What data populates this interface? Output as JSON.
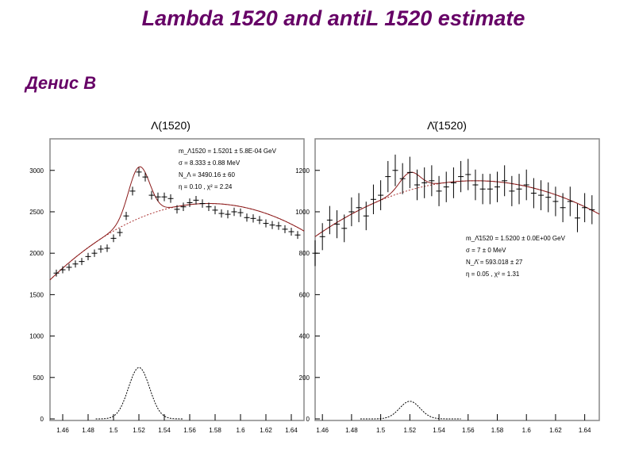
{
  "slide": {
    "title": "Lambda 1520 and antiL 1520 estimate",
    "author": "Денис В",
    "title_color": "#660066"
  },
  "chart_data": [
    {
      "type": "scatter",
      "title": "Λ(1520)",
      "xlim": [
        1.45,
        1.65
      ],
      "ylim": [
        0,
        3400
      ],
      "xticks": [
        "1.46",
        "1.48",
        "1.5",
        "1.52",
        "1.54",
        "1.56",
        "1.58",
        "1.6",
        "1.62",
        "1.64"
      ],
      "yticks": [
        "0",
        "500",
        "1000",
        "1500",
        "2000",
        "2500",
        "3000"
      ],
      "x": [
        1.455,
        1.46,
        1.465,
        1.47,
        1.475,
        1.48,
        1.485,
        1.49,
        1.495,
        1.5,
        1.505,
        1.51,
        1.515,
        1.52,
        1.525,
        1.53,
        1.535,
        1.54,
        1.545,
        1.55,
        1.555,
        1.56,
        1.565,
        1.57,
        1.575,
        1.58,
        1.585,
        1.59,
        1.595,
        1.6,
        1.605,
        1.61,
        1.615,
        1.62,
        1.625,
        1.63,
        1.635,
        1.64,
        1.645
      ],
      "y": [
        1760,
        1800,
        1830,
        1870,
        1900,
        1960,
        2000,
        2050,
        2060,
        2180,
        2250,
        2450,
        2750,
        2980,
        2920,
        2700,
        2680,
        2680,
        2660,
        2530,
        2560,
        2610,
        2640,
        2600,
        2560,
        2520,
        2480,
        2470,
        2500,
        2490,
        2430,
        2420,
        2400,
        2360,
        2340,
        2330,
        2290,
        2260,
        2220
      ],
      "fit": {
        "mean": 1.5201,
        "sigma": 0.0083,
        "amplitude": 620,
        "bg_peak": 2600,
        "bg_center": 1.575,
        "bg_curv": 59000
      },
      "annotations": [
        "m_Λ1520 = 1.5201 ± 5.8E-04 GeV",
        "σ = 8.333 ± 0.88 MeV",
        "N_Λ = 3490.16 ± 60",
        "η = 0.10 ,  χ² = 2.24"
      ],
      "legend_placement": "top-right"
    },
    {
      "type": "scatter",
      "title": "Λ̄(1520)",
      "xlim": [
        1.455,
        1.65
      ],
      "ylim": [
        0,
        1360
      ],
      "xticks": [
        "1.46",
        "1.48",
        "1.5",
        "1.52",
        "1.54",
        "1.56",
        "1.58",
        "1.6",
        "1.62",
        "1.64"
      ],
      "yticks": [
        "0",
        "200",
        "400",
        "600",
        "800",
        "1000",
        "1200"
      ],
      "x": [
        1.455,
        1.46,
        1.465,
        1.47,
        1.475,
        1.48,
        1.485,
        1.49,
        1.495,
        1.5,
        1.505,
        1.51,
        1.515,
        1.52,
        1.525,
        1.53,
        1.535,
        1.54,
        1.545,
        1.55,
        1.555,
        1.56,
        1.565,
        1.57,
        1.575,
        1.58,
        1.585,
        1.59,
        1.595,
        1.6,
        1.605,
        1.61,
        1.615,
        1.62,
        1.625,
        1.63,
        1.635,
        1.64,
        1.645
      ],
      "y": [
        800,
        880,
        960,
        940,
        920,
        1000,
        1020,
        980,
        1060,
        1080,
        1170,
        1200,
        1160,
        1190,
        1130,
        1140,
        1150,
        1100,
        1120,
        1140,
        1170,
        1180,
        1130,
        1110,
        1110,
        1120,
        1150,
        1100,
        1110,
        1130,
        1090,
        1080,
        1070,
        1050,
        1020,
        1050,
        970,
        1020,
        1010
      ],
      "fit": {
        "mean": 1.52,
        "sigma": 0.007,
        "amplitude": 85,
        "bg_peak": 1150,
        "bg_center": 1.565,
        "bg_curv": 22300
      },
      "annotations": [
        "m_Λ̄1520 = 1.5200 ± 0.0E+00 GeV",
        "σ = 7 ± 0 MeV",
        "N_Λ̄ = 593.018 ± 27",
        "η = 0.05 ,  χ² = 1.31"
      ],
      "legend_placement": "middle-right"
    }
  ]
}
